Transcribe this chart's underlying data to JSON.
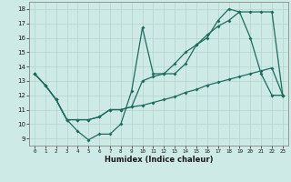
{
  "xlabel": "Humidex (Indice chaleur)",
  "xlim": [
    -0.5,
    23.5
  ],
  "ylim": [
    8.5,
    18.5
  ],
  "yticks": [
    9,
    10,
    11,
    12,
    13,
    14,
    15,
    16,
    17,
    18
  ],
  "xticks": [
    0,
    1,
    2,
    3,
    4,
    5,
    6,
    7,
    8,
    9,
    10,
    11,
    12,
    13,
    14,
    15,
    16,
    17,
    18,
    19,
    20,
    21,
    22,
    23
  ],
  "bg_color": "#cdeae6",
  "grid_color": "#b8d8d4",
  "line_color": "#1e6b5e",
  "line1_y": [
    13.5,
    12.7,
    11.7,
    10.3,
    9.5,
    8.9,
    9.3,
    9.3,
    10.0,
    12.3,
    16.7,
    13.5,
    13.5,
    13.5,
    14.2,
    15.5,
    16.0,
    17.2,
    18.0,
    17.8,
    16.0,
    13.5,
    12.0,
    12.0
  ],
  "line2_y": [
    13.5,
    12.7,
    11.7,
    10.3,
    10.3,
    10.3,
    10.5,
    11.0,
    11.0,
    11.2,
    13.0,
    13.3,
    13.5,
    14.2,
    15.0,
    15.5,
    16.2,
    16.8,
    17.2,
    17.8,
    17.8,
    17.8,
    17.8,
    12.0
  ],
  "line3_y": [
    13.5,
    12.7,
    11.7,
    10.3,
    10.3,
    10.3,
    10.5,
    11.0,
    11.0,
    11.2,
    11.3,
    11.5,
    11.7,
    11.9,
    12.2,
    12.4,
    12.7,
    12.9,
    13.1,
    13.3,
    13.5,
    13.7,
    13.9,
    12.0
  ]
}
